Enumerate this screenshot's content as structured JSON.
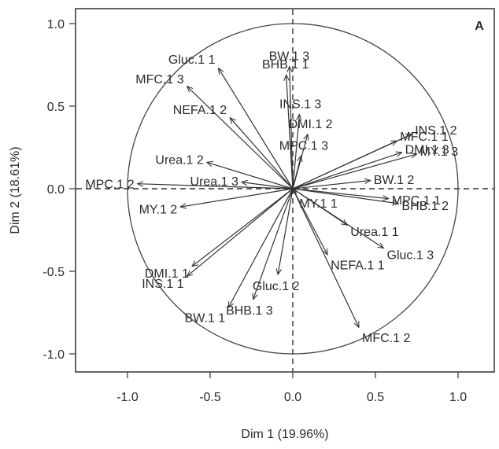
{
  "chart_data": {
    "type": "scatter",
    "subtype": "pca-correlation-circle",
    "panel_label": "A",
    "xlabel": "Dim 1 (19.96%)",
    "ylabel": "Dim 2 (18.61%)",
    "xlim": [
      -1.25,
      1.25
    ],
    "ylim": [
      -1.1,
      1.1
    ],
    "xticks": [
      -1.0,
      -0.5,
      0.0,
      0.5,
      1.0
    ],
    "xtick_labels": [
      "-1.0",
      "-0.5",
      "0.0",
      "0.5",
      "1.0"
    ],
    "yticks": [
      -1.0,
      -0.5,
      0.0,
      0.5,
      1.0
    ],
    "ytick_labels": [
      "-1.0",
      "-0.5",
      "0.0",
      "0.5",
      "1.0"
    ],
    "unit_circle": true,
    "reference_lines": "dashed at x=0 and y=0",
    "vectors": [
      {
        "label": "BW.1 3",
        "x": -0.02,
        "y": 0.74
      },
      {
        "label": "BHB.1 1",
        "x": -0.04,
        "y": 0.69
      },
      {
        "label": "INS.1 3",
        "x": 0.04,
        "y": 0.45
      },
      {
        "label": "DMI.1 2",
        "x": 0.09,
        "y": 0.33
      },
      {
        "label": "MPC.1 3",
        "x": 0.05,
        "y": 0.2
      },
      {
        "label": "Gluc.1 1",
        "x": -0.45,
        "y": 0.73
      },
      {
        "label": "MFC.1 3",
        "x": -0.64,
        "y": 0.62
      },
      {
        "label": "NEFA.1 2",
        "x": -0.38,
        "y": 0.43
      },
      {
        "label": "Urea.1 2",
        "x": -0.52,
        "y": 0.16
      },
      {
        "label": "Urea.1 3",
        "x": -0.31,
        "y": 0.04
      },
      {
        "label": "MPC.1 2",
        "x": -0.94,
        "y": 0.03
      },
      {
        "label": "MY.1 2",
        "x": -0.68,
        "y": -0.11
      },
      {
        "label": "MFC.1 1",
        "x": 0.63,
        "y": 0.29
      },
      {
        "label": "INS.1 2",
        "x": 0.72,
        "y": 0.33
      },
      {
        "label": "DMI.1 3",
        "x": 0.66,
        "y": 0.22
      },
      {
        "label": "MY.1 3",
        "x": 0.75,
        "y": 0.21
      },
      {
        "label": "BW.1 2",
        "x": 0.47,
        "y": 0.05
      },
      {
        "label": "MPC.1 1",
        "x": 0.58,
        "y": -0.06
      },
      {
        "label": "BHB.1 2",
        "x": 0.64,
        "y": -0.09
      },
      {
        "label": "MY.1 1",
        "x": 0.02,
        "y": -0.03
      },
      {
        "label": "Urea.1 1",
        "x": 0.33,
        "y": -0.22
      },
      {
        "label": "Gluc.1 3",
        "x": 0.55,
        "y": -0.36
      },
      {
        "label": "NEFA.1 1",
        "x": 0.21,
        "y": -0.4
      },
      {
        "label": "MFC.1 2",
        "x": 0.4,
        "y": -0.84
      },
      {
        "label": "DMI.1 1",
        "x": -0.61,
        "y": -0.47
      },
      {
        "label": "INS.1 1",
        "x": -0.64,
        "y": -0.53
      },
      {
        "label": "BW.1 1",
        "x": -0.39,
        "y": -0.72
      },
      {
        "label": "Gluc.1 2",
        "x": -0.09,
        "y": -0.52
      },
      {
        "label": "BHB.1 3",
        "x": -0.24,
        "y": -0.67
      }
    ]
  }
}
